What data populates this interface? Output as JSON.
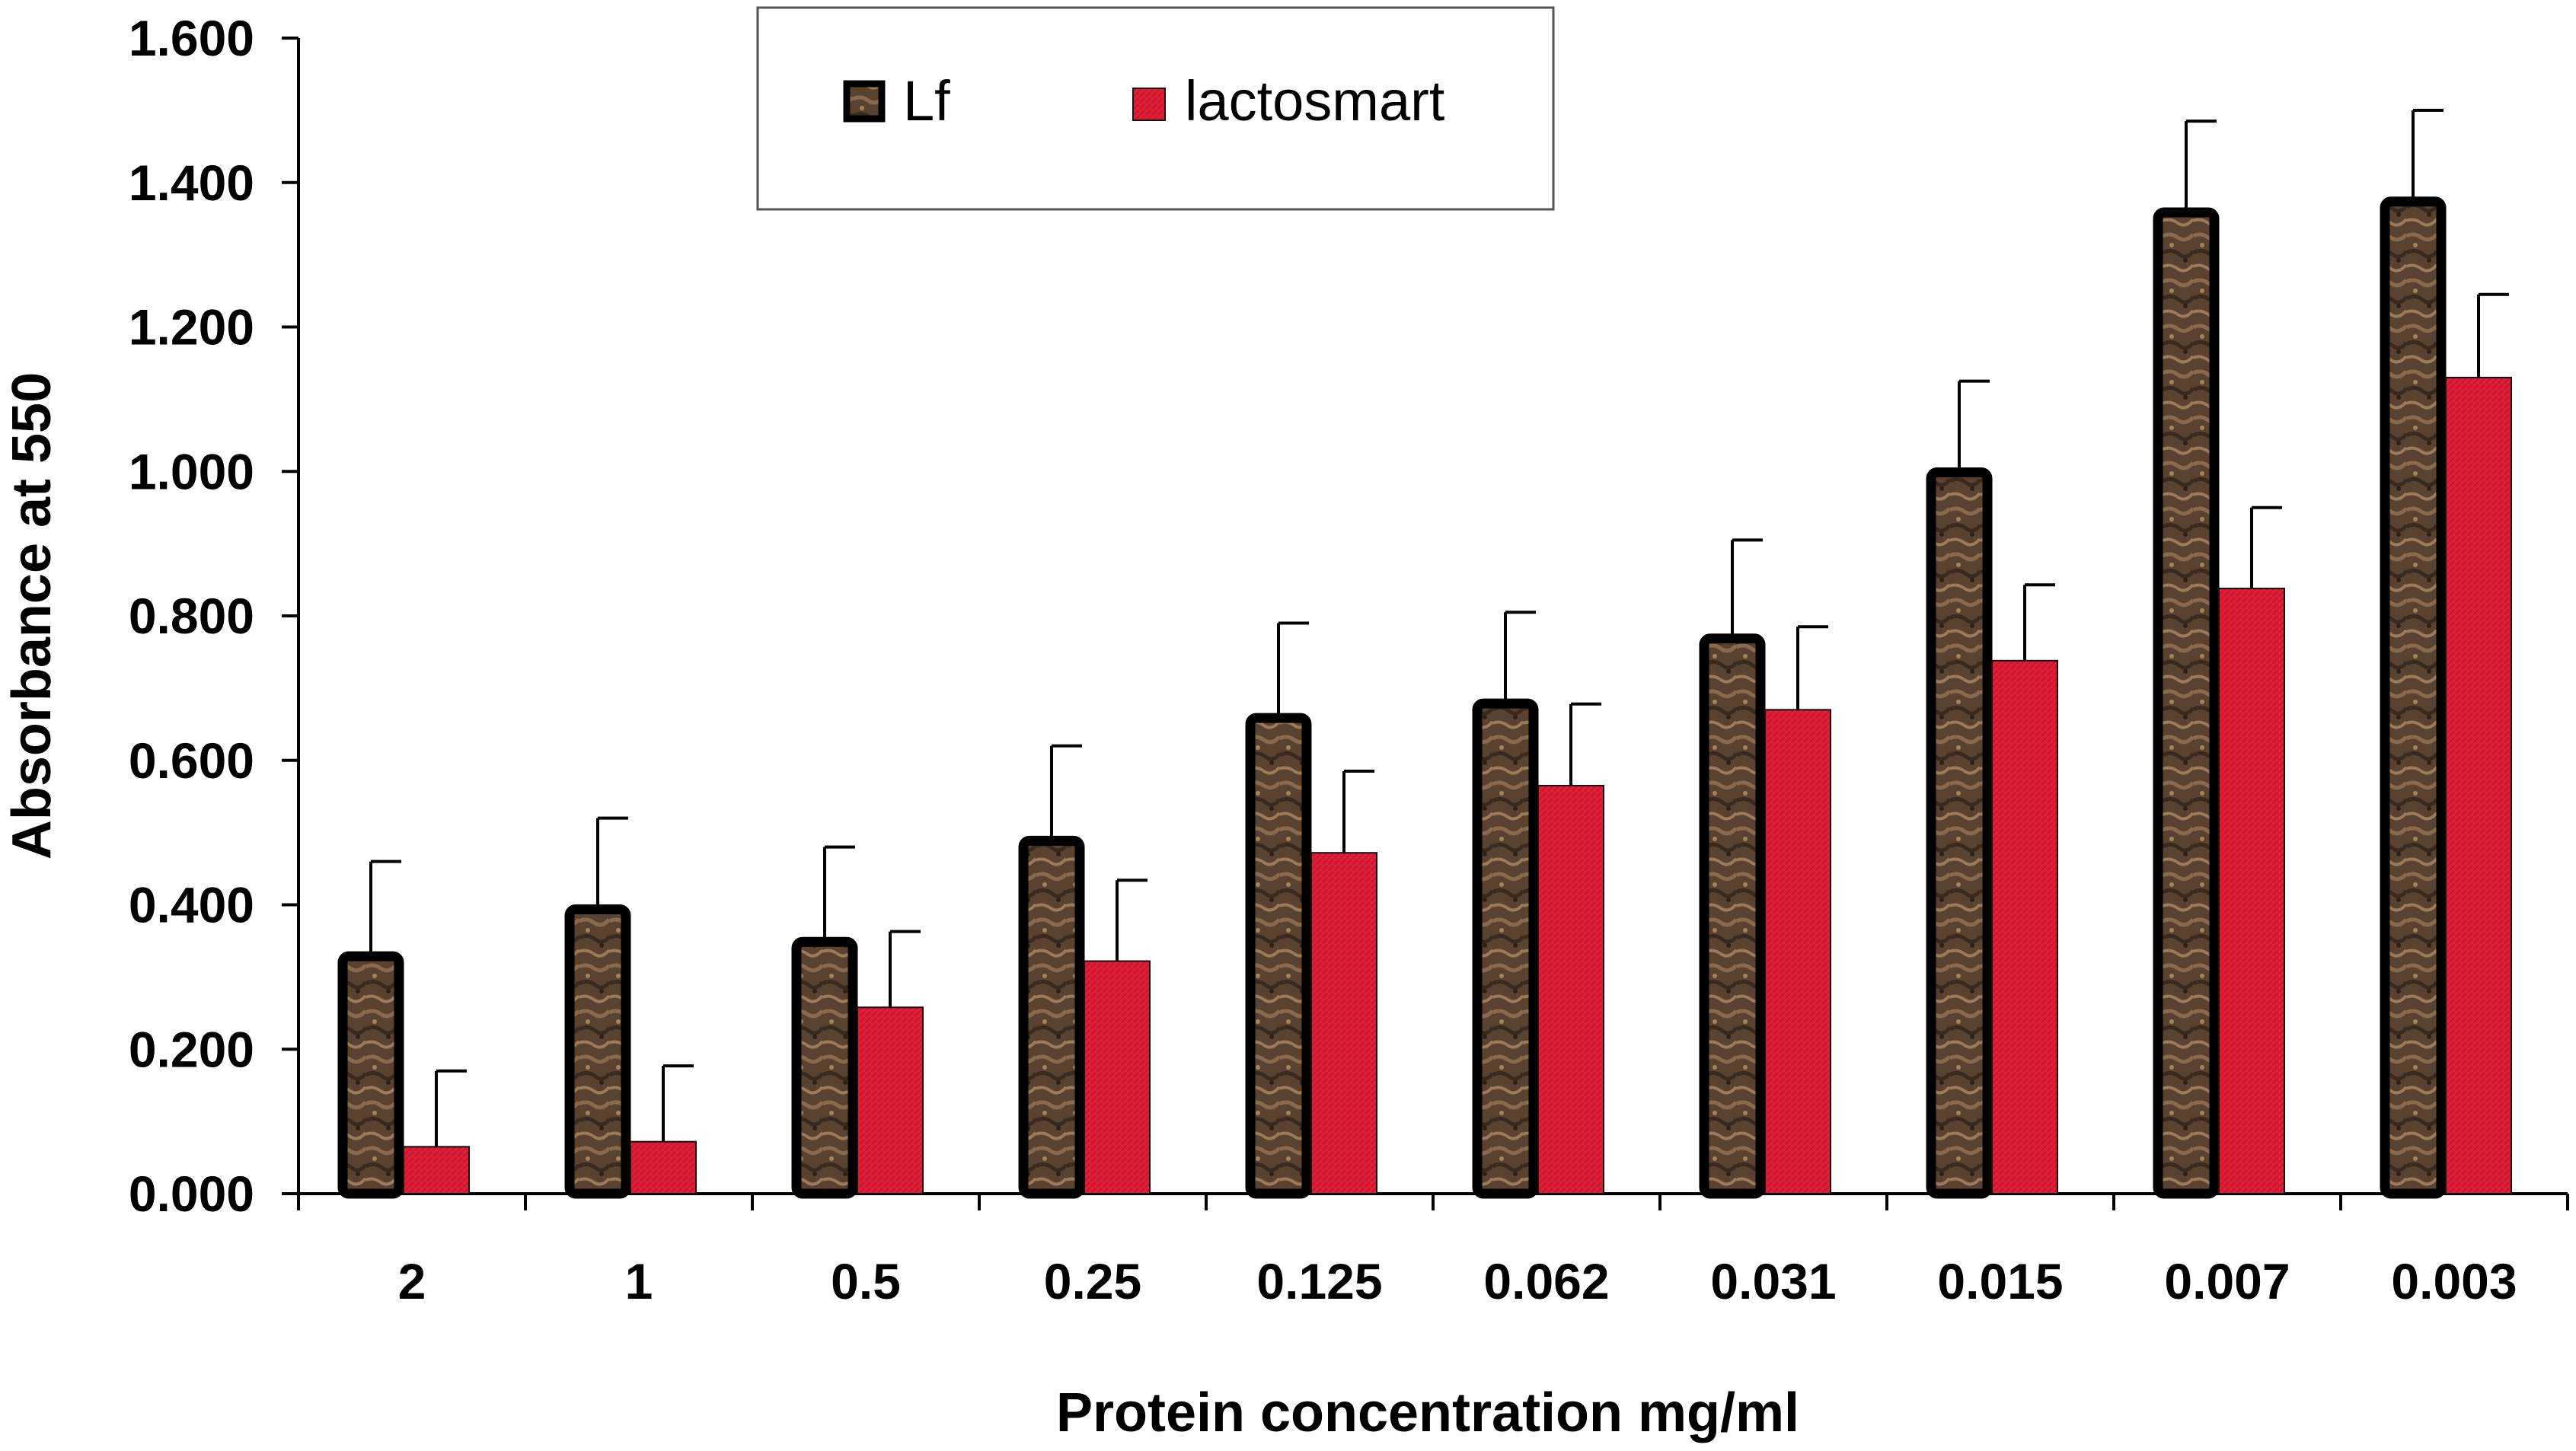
{
  "chart_data": {
    "type": "bar",
    "title": "",
    "xlabel": "Protein concentration mg/ml",
    "ylabel": "Absorbance at 550",
    "ylim": [
      0,
      1.6
    ],
    "yticks": [
      "0.000",
      "0.200",
      "0.400",
      "0.600",
      "0.800",
      "1.000",
      "1.200",
      "1.400",
      "1.600"
    ],
    "categories": [
      "2",
      "1",
      "0.5",
      "0.25",
      "0.125",
      "0.062",
      "0.031",
      "0.015",
      "0.007",
      "0.003"
    ],
    "legend_position": "top-center",
    "grid": false,
    "series": [
      {
        "name": "Lf",
        "color": "#5a4230",
        "values": [
          0.335,
          0.4,
          0.355,
          0.495,
          0.665,
          0.685,
          0.775,
          1.005,
          1.365,
          1.38
        ],
        "errors": [
          0.125,
          0.12,
          0.125,
          0.125,
          0.125,
          0.12,
          0.13,
          0.12,
          0.12,
          0.12
        ]
      },
      {
        "name": "lactosmart",
        "color": "#e01e37",
        "values": [
          0.065,
          0.072,
          0.258,
          0.322,
          0.472,
          0.565,
          0.67,
          0.738,
          0.838,
          1.13
        ],
        "errors": [
          0.105,
          0.105,
          0.105,
          0.112,
          0.113,
          0.113,
          0.115,
          0.105,
          0.112,
          0.115
        ]
      }
    ]
  }
}
